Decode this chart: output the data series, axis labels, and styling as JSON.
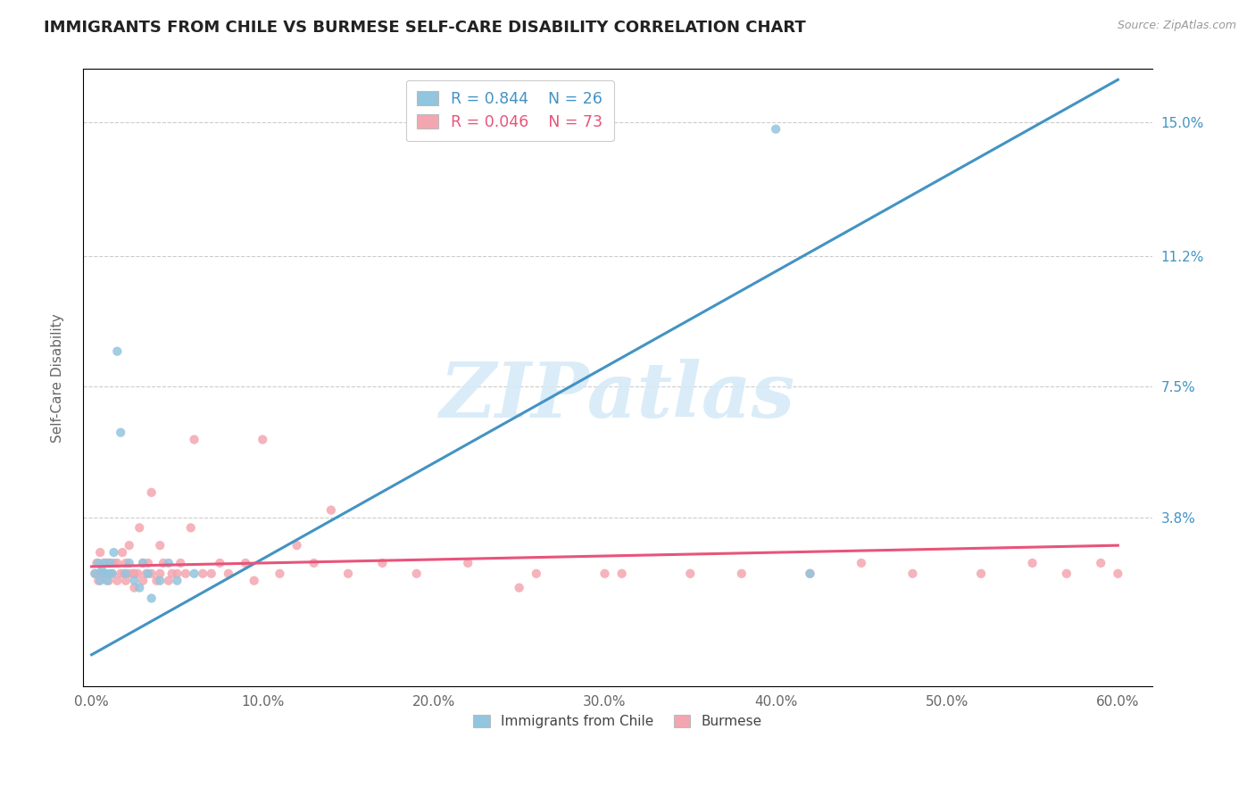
{
  "title": "IMMIGRANTS FROM CHILE VS BURMESE SELF-CARE DISABILITY CORRELATION CHART",
  "source": "Source: ZipAtlas.com",
  "xlabel_ticks": [
    "0.0%",
    "10.0%",
    "20.0%",
    "30.0%",
    "40.0%",
    "50.0%",
    "60.0%"
  ],
  "xlabel_vals": [
    0.0,
    0.1,
    0.2,
    0.3,
    0.4,
    0.5,
    0.6
  ],
  "ylabel_right_ticks": [
    "3.8%",
    "7.5%",
    "11.2%",
    "15.0%"
  ],
  "ylabel_right_vals": [
    0.038,
    0.075,
    0.112,
    0.15
  ],
  "ylabel_label": "Self-Care Disability",
  "legend_blue_label": "Immigrants from Chile",
  "legend_pink_label": "Burmese",
  "legend_blue_R": "R = 0.844",
  "legend_blue_N": "N = 26",
  "legend_pink_R": "R = 0.046",
  "legend_pink_N": "N = 73",
  "blue_color": "#92c5de",
  "pink_color": "#f4a6b0",
  "line_blue_color": "#4393c3",
  "line_pink_color": "#e8547a",
  "watermark_color": "#d6eaf8",
  "watermark": "ZIPatlas",
  "blue_scatter_x": [
    0.002,
    0.004,
    0.005,
    0.006,
    0.007,
    0.008,
    0.009,
    0.01,
    0.011,
    0.012,
    0.013,
    0.015,
    0.017,
    0.02,
    0.022,
    0.025,
    0.028,
    0.03,
    0.033,
    0.035,
    0.04,
    0.045,
    0.05,
    0.06,
    0.4,
    0.42
  ],
  "blue_scatter_y": [
    0.022,
    0.025,
    0.02,
    0.023,
    0.022,
    0.025,
    0.02,
    0.022,
    0.025,
    0.022,
    0.028,
    0.085,
    0.062,
    0.022,
    0.025,
    0.02,
    0.018,
    0.025,
    0.022,
    0.015,
    0.02,
    0.025,
    0.02,
    0.022,
    0.148,
    0.022
  ],
  "pink_scatter_x": [
    0.002,
    0.003,
    0.004,
    0.005,
    0.005,
    0.006,
    0.007,
    0.008,
    0.009,
    0.01,
    0.01,
    0.012,
    0.013,
    0.015,
    0.015,
    0.017,
    0.018,
    0.019,
    0.02,
    0.02,
    0.022,
    0.022,
    0.024,
    0.025,
    0.025,
    0.027,
    0.028,
    0.03,
    0.03,
    0.032,
    0.033,
    0.035,
    0.035,
    0.038,
    0.04,
    0.04,
    0.042,
    0.045,
    0.047,
    0.05,
    0.052,
    0.055,
    0.058,
    0.06,
    0.065,
    0.07,
    0.075,
    0.08,
    0.09,
    0.095,
    0.1,
    0.11,
    0.12,
    0.13,
    0.15,
    0.17,
    0.19,
    0.22,
    0.26,
    0.3,
    0.35,
    0.38,
    0.42,
    0.45,
    0.48,
    0.52,
    0.55,
    0.57,
    0.59,
    0.6,
    0.25,
    0.31,
    0.14
  ],
  "pink_scatter_y": [
    0.022,
    0.025,
    0.02,
    0.022,
    0.028,
    0.022,
    0.025,
    0.022,
    0.025,
    0.02,
    0.025,
    0.022,
    0.025,
    0.02,
    0.025,
    0.022,
    0.028,
    0.022,
    0.02,
    0.025,
    0.022,
    0.03,
    0.022,
    0.018,
    0.022,
    0.022,
    0.035,
    0.02,
    0.025,
    0.022,
    0.025,
    0.022,
    0.045,
    0.02,
    0.022,
    0.03,
    0.025,
    0.02,
    0.022,
    0.022,
    0.025,
    0.022,
    0.035,
    0.06,
    0.022,
    0.022,
    0.025,
    0.022,
    0.025,
    0.02,
    0.06,
    0.022,
    0.03,
    0.025,
    0.022,
    0.025,
    0.022,
    0.025,
    0.022,
    0.022,
    0.022,
    0.022,
    0.022,
    0.025,
    0.022,
    0.022,
    0.025,
    0.022,
    0.025,
    0.022,
    0.018,
    0.022,
    0.04
  ],
  "blue_line_x": [
    0.0,
    0.6
  ],
  "blue_line_y": [
    -0.001,
    0.162
  ],
  "pink_line_x": [
    0.0,
    0.6
  ],
  "pink_line_y": [
    0.024,
    0.03
  ],
  "xlim": [
    -0.005,
    0.62
  ],
  "ylim": [
    -0.01,
    0.165
  ],
  "figwidth": 14.06,
  "figheight": 8.92
}
